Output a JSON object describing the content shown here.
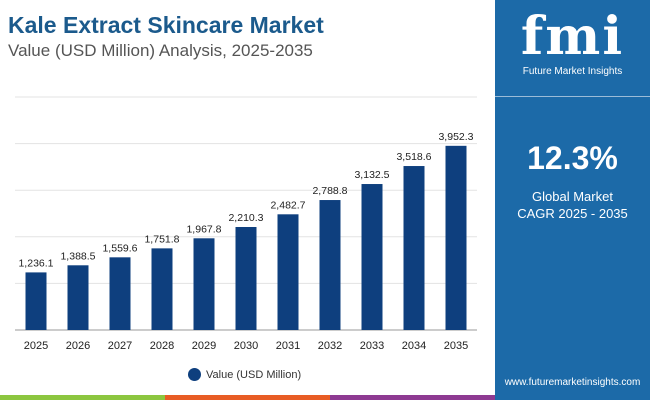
{
  "title": "Kale Extract Skincare Market",
  "subtitle": "Value (USD Million) Analysis, 2025-2035",
  "panel": {
    "logo_text": "fmi",
    "brand": "Future Market Insights",
    "cagr_value": "12.3%",
    "cagr_label_1": "Global Market",
    "cagr_label_2": "CAGR 2025 - 2035",
    "url": "www.futuremarketinsights.com"
  },
  "colors": {
    "bar": "#0e3f7e",
    "panel": "#1c6aa8",
    "title": "#1b5a8c",
    "stripe": [
      "#8cc63f",
      "#e85c24",
      "#8e3a92"
    ]
  },
  "chart_data": {
    "type": "bar",
    "categories": [
      "2025",
      "2026",
      "2027",
      "2028",
      "2029",
      "2030",
      "2031",
      "2032",
      "2033",
      "2034",
      "2035"
    ],
    "series": [
      {
        "name": "Value (USD Million)",
        "values": [
          1236.1,
          1388.5,
          1559.6,
          1751.8,
          1967.8,
          2210.3,
          2482.7,
          2788.8,
          3132.5,
          3518.6,
          3952.3
        ]
      }
    ],
    "labels": [
      "1,236.1",
      "1,388.5",
      "1,559.6",
      "1,751.8",
      "1,967.8",
      "2,210.3",
      "2,482.7",
      "2,788.8",
      "3,132.5",
      "3,518.6",
      "3,952.3"
    ],
    "ylim": [
      0,
      5000
    ],
    "grid": true,
    "legend": "bottom"
  }
}
